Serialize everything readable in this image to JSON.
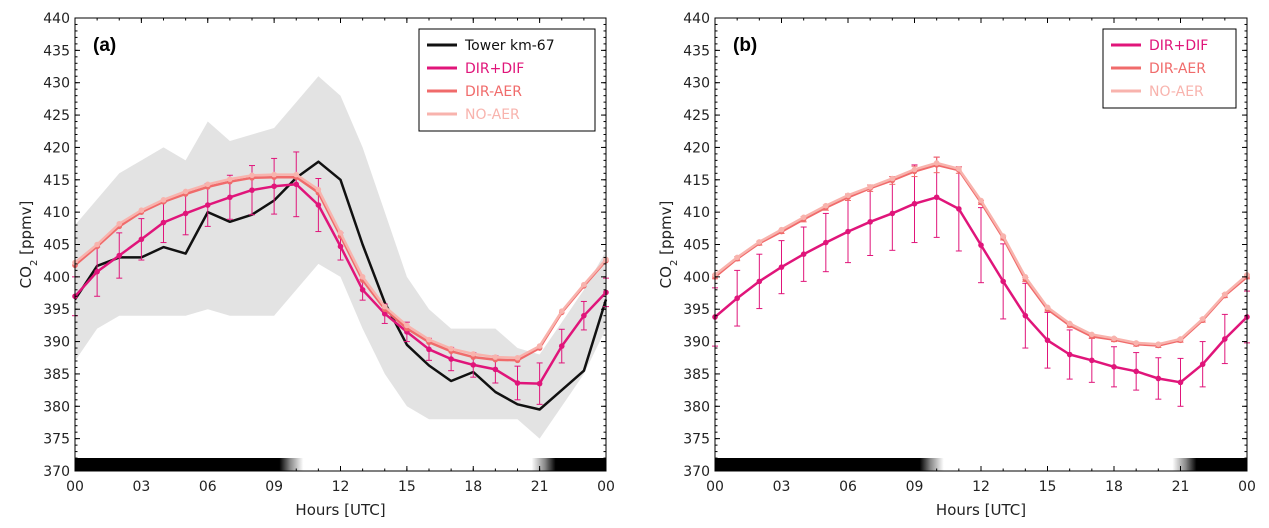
{
  "colors": {
    "tower": "#111111",
    "dir_dif": "#e0157a",
    "dir_aer": "#f06b6b",
    "no_aer": "#f8b3ad",
    "band": "#e3e3e3"
  },
  "chart_data": [
    {
      "panel": "(a)",
      "type": "line",
      "xlabel": "Hours [UTC]",
      "ylabel": "CO2 [ppmv]",
      "ylim": [
        370,
        440
      ],
      "xlim": [
        0,
        24
      ],
      "yticks": [
        "370",
        "375",
        "380",
        "385",
        "390",
        "395",
        "400",
        "405",
        "410",
        "415",
        "420",
        "425",
        "430",
        "435",
        "440"
      ],
      "xticks": [
        "00",
        "03",
        "06",
        "09",
        "12",
        "15",
        "18",
        "21",
        "00"
      ],
      "legend_position": "top-right",
      "day_night_bar": "night until ~09 UTC, day ~10–20 UTC, night after ~21 UTC",
      "x": [
        0,
        1,
        2,
        3,
        4,
        5,
        6,
        7,
        8,
        9,
        10,
        11,
        12,
        13,
        14,
        15,
        16,
        17,
        18,
        19,
        20,
        21,
        22,
        23,
        24
      ],
      "tower_band": {
        "lower": [
          387,
          392,
          394,
          394,
          394,
          394,
          395,
          394,
          394,
          394,
          398,
          402,
          400,
          392,
          385,
          380,
          378,
          378,
          378,
          378,
          378,
          375,
          380,
          385,
          392
        ],
        "upper": [
          408,
          412,
          416,
          418,
          420,
          418,
          424,
          421,
          422,
          423,
          427,
          431,
          428,
          420,
          410,
          400,
          395,
          392,
          392,
          392,
          389,
          388,
          393,
          398,
          404
        ]
      },
      "series": [
        {
          "name": "Tower km-67",
          "color_key": "tower",
          "values": [
            396.5,
            401.7,
            403,
            403,
            404.6,
            403.6,
            410,
            408.5,
            409.6,
            411.8,
            415.3,
            417.8,
            415,
            405,
            396,
            389.5,
            386.3,
            383.9,
            385.3,
            382.2,
            380.3,
            379.5,
            382.5,
            385.5,
            396.5
          ]
        },
        {
          "name": "DIR+DIF",
          "color_key": "dir_dif",
          "values": [
            397,
            400.8,
            403.3,
            405.8,
            408.4,
            409.8,
            411.1,
            412.3,
            413.4,
            414,
            414.3,
            411.1,
            404.7,
            398,
            394.3,
            391.5,
            388.8,
            387.3,
            386.4,
            385.7,
            383.6,
            383.5,
            389.3,
            394,
            397.6
          ],
          "errors": [
            3,
            3.8,
            3.5,
            3.2,
            3.1,
            3.3,
            3.3,
            3.4,
            3.8,
            4.3,
            5,
            4.1,
            2.1,
            1.6,
            1.5,
            1.5,
            1.7,
            1.8,
            1.9,
            2.1,
            2.6,
            3.2,
            2.6,
            2.2,
            2.2
          ]
        },
        {
          "name": "DIR-AER",
          "color_key": "dir_aer",
          "values": [
            401.8,
            404.7,
            407.8,
            410,
            411.6,
            412.8,
            413.9,
            414.7,
            415.3,
            415.4,
            415.4,
            413,
            406.3,
            399.5,
            395,
            392,
            389.9,
            388.5,
            387.6,
            387.2,
            387.1,
            389,
            394.5,
            398.6,
            402.5
          ]
        },
        {
          "name": "NO-AER",
          "color_key": "no_aer",
          "values": [
            402.2,
            405,
            408.2,
            410.3,
            411.9,
            413.2,
            414.3,
            415.1,
            415.7,
            415.8,
            415.8,
            413.5,
            406.8,
            400,
            395.4,
            392.5,
            390.3,
            388.9,
            388.1,
            387.6,
            387.5,
            389.3,
            394.7,
            398.8,
            402.7
          ]
        }
      ]
    },
    {
      "panel": "(b)",
      "type": "line",
      "xlabel": "Hours [UTC]",
      "ylabel": "CO2 [ppmv]",
      "ylim": [
        370,
        440
      ],
      "xlim": [
        0,
        24
      ],
      "yticks": [
        "370",
        "375",
        "380",
        "385",
        "390",
        "395",
        "400",
        "405",
        "410",
        "415",
        "420",
        "425",
        "430",
        "435",
        "440"
      ],
      "xticks": [
        "00",
        "03",
        "06",
        "09",
        "12",
        "15",
        "18",
        "21",
        "00"
      ],
      "legend_position": "top-right",
      "day_night_bar": "night until ~09 UTC, day ~10–20 UTC, night after ~21 UTC",
      "x": [
        0,
        1,
        2,
        3,
        4,
        5,
        6,
        7,
        8,
        9,
        10,
        11,
        12,
        13,
        14,
        15,
        16,
        17,
        18,
        19,
        20,
        21,
        22,
        23,
        24
      ],
      "series": [
        {
          "name": "DIR+DIF",
          "color_key": "dir_dif",
          "values": [
            393.8,
            396.7,
            399.3,
            401.5,
            403.5,
            405.3,
            407,
            408.5,
            409.8,
            411.3,
            412.3,
            410.5,
            404.9,
            399.3,
            394,
            390.2,
            388,
            387.1,
            386.1,
            385.4,
            384.3,
            383.7,
            386.5,
            390.4,
            393.8
          ],
          "errors": [
            4.5,
            4.3,
            4.2,
            4.1,
            4.2,
            4.5,
            4.8,
            5.2,
            5.7,
            6,
            6.2,
            6.5,
            5.8,
            5.8,
            5,
            4.3,
            3.8,
            3.4,
            3.1,
            2.9,
            3.2,
            3.7,
            3.5,
            3.8,
            4
          ]
        },
        {
          "name": "DIR-AER",
          "color_key": "dir_aer",
          "values": [
            400,
            402.8,
            405.2,
            407,
            408.9,
            410.7,
            412.3,
            413.7,
            414.9,
            416.3,
            417.3,
            416.5,
            411.5,
            406,
            399.6,
            395,
            392.5,
            390.8,
            390.3,
            389.6,
            389.4,
            390.2,
            393.3,
            397.1,
            400
          ],
          "errors": [
            0.3,
            0.3,
            0.3,
            0.3,
            0.4,
            0.4,
            0.5,
            0.5,
            0.6,
            0.8,
            1.2,
            0.5,
            0.3,
            0.3,
            0.3,
            0.3,
            0.3,
            0.3,
            0.3,
            0.3,
            0.3,
            0.3,
            0.3,
            0.3,
            0.3
          ]
        },
        {
          "name": "NO-AER",
          "color_key": "no_aer",
          "values": [
            400.3,
            403,
            405.4,
            407.3,
            409.2,
            411,
            412.6,
            413.9,
            415.2,
            416.6,
            417.6,
            416.7,
            411.8,
            406.3,
            400,
            395.3,
            392.8,
            391.1,
            390.5,
            389.8,
            389.6,
            390.4,
            393.5,
            397.3,
            400.3
          ]
        }
      ]
    }
  ]
}
